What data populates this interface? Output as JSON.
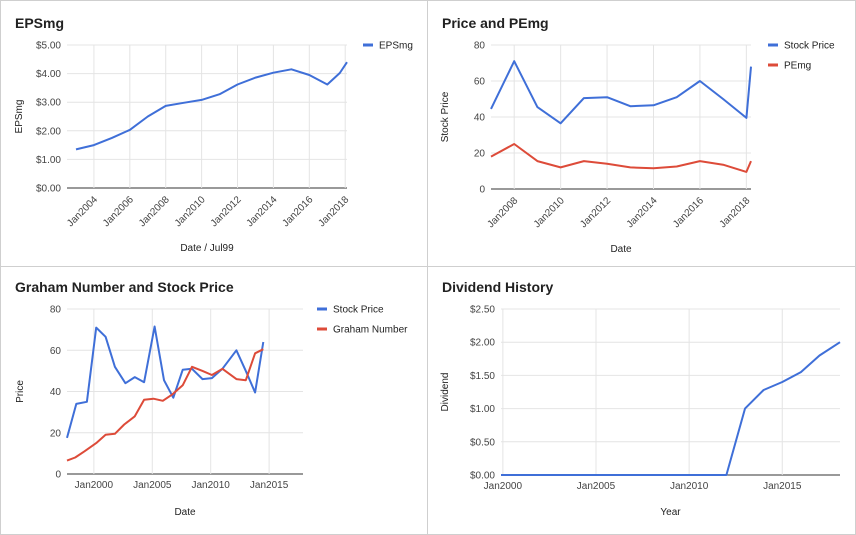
{
  "colors": {
    "blue": "#3f6fd8",
    "red": "#dd4b39",
    "grid": "#e4e4e4",
    "axis": "#333333"
  },
  "chart_data": [
    {
      "type": "line",
      "title": "EPSmg",
      "xlabel": "Date / Jul99",
      "ylabel": "EPSmg",
      "x_ticks": [
        "Jan2004",
        "Jan2006",
        "Jan2008",
        "Jan2010",
        "Jan2012",
        "Jan2014",
        "Jan2016",
        "Jan2018"
      ],
      "y_ticks": [
        "$0.00",
        "$1.00",
        "$2.00",
        "$3.00",
        "$4.00",
        "$5.00"
      ],
      "xlim": [
        2002.5,
        2018.1
      ],
      "ylim": [
        0,
        5
      ],
      "legend": "right",
      "grid": true,
      "series": [
        {
          "name": "EPSmg",
          "color": "#3f6fd8",
          "points": [
            [
              2003,
              1.35
            ],
            [
              2004,
              1.5
            ],
            [
              2005,
              1.75
            ],
            [
              2006,
              2.03
            ],
            [
              2007,
              2.5
            ],
            [
              2008,
              2.87
            ],
            [
              2009,
              2.98
            ],
            [
              2010,
              3.08
            ],
            [
              2011,
              3.28
            ],
            [
              2012,
              3.62
            ],
            [
              2013,
              3.86
            ],
            [
              2014,
              4.03
            ],
            [
              2015,
              4.15
            ],
            [
              2016,
              3.95
            ],
            [
              2017,
              3.62
            ],
            [
              2017.7,
              4.02
            ],
            [
              2018.1,
              4.4
            ]
          ]
        }
      ]
    },
    {
      "type": "line",
      "title": "Price and PEmg",
      "xlabel": "Date",
      "ylabel": "Stock Price",
      "x_ticks": [
        "Jan2008",
        "Jan2010",
        "Jan2012",
        "Jan2014",
        "Jan2016",
        "Jan2018"
      ],
      "y_ticks": [
        "0",
        "20",
        "40",
        "60",
        "80"
      ],
      "xlim": [
        2007,
        2018.2
      ],
      "ylim": [
        0,
        80
      ],
      "legend": "right",
      "grid": true,
      "series": [
        {
          "name": "Stock Price",
          "color": "#3f6fd8",
          "points": [
            [
              2007,
              44.5
            ],
            [
              2008,
              71
            ],
            [
              2009,
              45.5
            ],
            [
              2010,
              36.5
            ],
            [
              2011,
              50.5
            ],
            [
              2012,
              51
            ],
            [
              2013,
              46
            ],
            [
              2014,
              46.5
            ],
            [
              2015,
              51
            ],
            [
              2016,
              60
            ],
            [
              2017,
              50
            ],
            [
              2018,
              39.5
            ],
            [
              2018.2,
              68
            ]
          ]
        },
        {
          "name": "PEmg",
          "color": "#dd4b39",
          "points": [
            [
              2007,
              18
            ],
            [
              2008,
              25
            ],
            [
              2009,
              15.5
            ],
            [
              2010,
              12
            ],
            [
              2011,
              15.5
            ],
            [
              2012,
              14
            ],
            [
              2013,
              12
            ],
            [
              2014,
              11.5
            ],
            [
              2015,
              12.5
            ],
            [
              2016,
              15.5
            ],
            [
              2017,
              13.5
            ],
            [
              2018,
              9.5
            ],
            [
              2018.2,
              15.5
            ]
          ]
        }
      ]
    },
    {
      "type": "line",
      "title": "Graham Number and Stock Price",
      "xlabel": "Date",
      "ylabel": "Price",
      "x_ticks": [
        "Jan2000",
        "Jan2005",
        "Jan2010",
        "Jan2015"
      ],
      "y_ticks": [
        "0",
        "20",
        "40",
        "60",
        "80"
      ],
      "xlim": [
        1997.7,
        2017.9
      ],
      "ylim": [
        0,
        80
      ],
      "legend": "right",
      "grid": true,
      "series": [
        {
          "name": "Stock Price",
          "color": "#3f6fd8",
          "points": [
            [
              1997.7,
              17.5
            ],
            [
              1998.5,
              34
            ],
            [
              1999.4,
              35
            ],
            [
              2000.2,
              71
            ],
            [
              2001,
              66.5
            ],
            [
              2001.8,
              52
            ],
            [
              2002.7,
              44
            ],
            [
              2003.5,
              47
            ],
            [
              2004.3,
              44.5
            ],
            [
              2005.2,
              71.5
            ],
            [
              2006,
              45.5
            ],
            [
              2006.8,
              37
            ],
            [
              2007.6,
              50.5
            ],
            [
              2008.4,
              51
            ],
            [
              2009.3,
              46
            ],
            [
              2010.1,
              46.5
            ],
            [
              2011,
              51
            ],
            [
              2012.2,
              60
            ],
            [
              2013,
              50
            ],
            [
              2013.8,
              39.5
            ],
            [
              2014.5,
              64
            ]
          ]
        },
        {
          "name": "Graham Number",
          "color": "#dd4b39",
          "points": [
            [
              1997.7,
              6.5
            ],
            [
              1998.4,
              8
            ],
            [
              1999.2,
              11
            ],
            [
              2000.2,
              15
            ],
            [
              2001,
              19
            ],
            [
              2001.8,
              19.5
            ],
            [
              2002.6,
              24
            ],
            [
              2003.5,
              28
            ],
            [
              2004.3,
              36
            ],
            [
              2005.1,
              36.5
            ],
            [
              2005.9,
              35.5
            ],
            [
              2006.7,
              38.5
            ],
            [
              2007.6,
              43
            ],
            [
              2008.4,
              52
            ],
            [
              2009.3,
              50
            ],
            [
              2010.1,
              48
            ],
            [
              2011,
              51
            ],
            [
              2012.2,
              46
            ],
            [
              2013,
              45.5
            ],
            [
              2013.8,
              58.5
            ],
            [
              2014.5,
              60.5
            ]
          ]
        }
      ]
    },
    {
      "type": "line",
      "title": "Dividend History",
      "xlabel": "Year",
      "ylabel": "Dividend",
      "x_ticks": [
        "Jan2000",
        "Jan2005",
        "Jan2010",
        "Jan2015"
      ],
      "y_ticks": [
        "$0.00",
        "$0.50",
        "$1.00",
        "$1.50",
        "$2.00",
        "$2.50"
      ],
      "xlim": [
        1999.9,
        2018.1
      ],
      "ylim": [
        0,
        2.5
      ],
      "legend": "none",
      "grid": true,
      "series": [
        {
          "name": "",
          "color": "#3f6fd8",
          "points": [
            [
              1999.9,
              0
            ],
            [
              2011,
              0
            ],
            [
              2012,
              0
            ],
            [
              2013,
              1
            ],
            [
              2014,
              1.28
            ],
            [
              2015,
              1.4
            ],
            [
              2016,
              1.55
            ],
            [
              2017,
              1.8
            ],
            [
              2018.1,
              2.0
            ]
          ]
        }
      ]
    }
  ]
}
